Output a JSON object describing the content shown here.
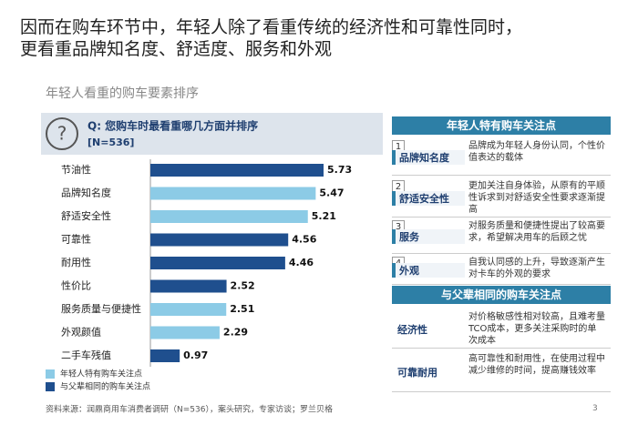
{
  "header": {
    "title_line1": "因而在购车环节中，年轻人除了看重传统的经济性和可靠性同时，",
    "title_line2": "更看重品牌知名度、舒适度、服务和外观"
  },
  "chart_data": {
    "type": "bar",
    "orientation": "horizontal",
    "title": "年轻人看重的购车要素排序",
    "question": "Q: 您购车时最看重哪几方面并排序",
    "sample": "[N=536]",
    "categories": [
      "节油性",
      "品牌知名度",
      "舒适安全性",
      "可靠性",
      "耐用性",
      "性价比",
      "服务质量与便捷性",
      "外观颜值",
      "二手车残值"
    ],
    "series": [
      {
        "name": "年轻人特有购车关注点",
        "color": "#8ccbe6",
        "values": [
          null,
          5.47,
          5.21,
          null,
          null,
          null,
          2.51,
          2.29,
          null
        ]
      },
      {
        "name": "与父辈相同的购车关注点",
        "color": "#1f4f8e",
        "values": [
          5.73,
          null,
          null,
          4.56,
          4.46,
          2.52,
          null,
          null,
          0.97
        ]
      }
    ]
  },
  "panel": {
    "young": {
      "title": "年轻人特有购车关注点",
      "items": [
        {
          "num": "1",
          "label": "品牌知名度",
          "text": "品牌成为年轻人身份认同，个性价值表达的载体"
        },
        {
          "num": "2",
          "label": "舒适安全性",
          "text": "更加关注自身体验，从原有的平顺性诉求到对舒适安全性要求逐渐提高"
        },
        {
          "num": "3",
          "label": "服务",
          "text": "对服务质量和便捷性提出了较高要求，希望解决用车的后顾之忧"
        },
        {
          "num": "4",
          "label": "外观",
          "text": "自我认同感的上升，导致逐渐产生对卡车的外观的要求"
        }
      ]
    },
    "shared": {
      "title": "与父辈相同的购车关注点",
      "items": [
        {
          "label": "经济性",
          "text": "对价格敏感性相对较高，且难考量TCO成本，更多关注采购时的单次成本"
        },
        {
          "label": "可靠耐用",
          "text": "高可靠性和耐用性，在使用过程中减少维修的时间，提高赚钱效率"
        }
      ]
    }
  },
  "footer": {
    "source": "资料来源：润鼎商用车消费者调研（N=536），案头研究，专家访谈；罗兰贝格",
    "page": "3"
  }
}
